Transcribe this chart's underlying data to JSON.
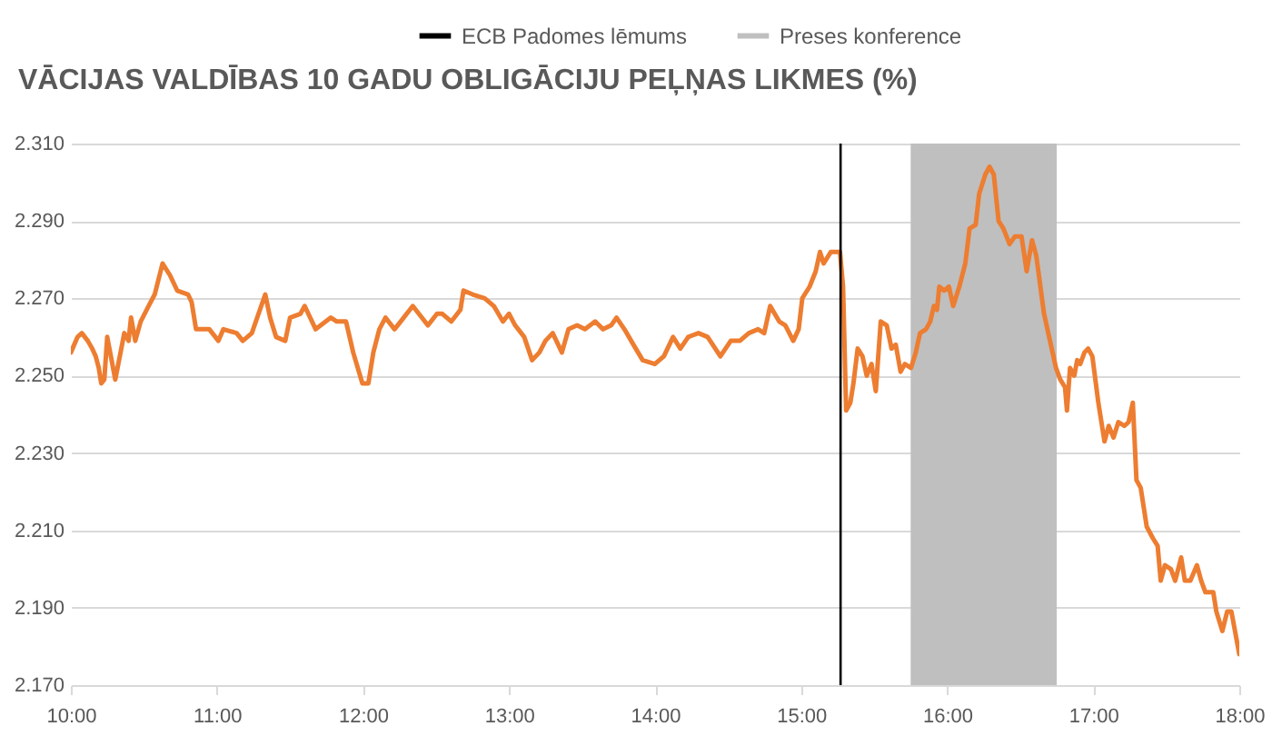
{
  "chart_data": {
    "type": "line",
    "title": "VĀCIJAS VALDĪBAS 10 GADU OBLIGĀCIJU PEĻŅAS LIKMES (%)",
    "x": [
      10.0,
      10.046,
      10.075,
      10.116,
      10.146,
      10.17,
      10.191,
      10.208,
      10.229,
      10.249,
      10.304,
      10.366,
      10.395,
      10.412,
      10.441,
      10.478,
      10.532,
      10.574,
      10.628,
      10.678,
      10.728,
      10.802,
      10.827,
      10.857,
      10.948,
      11.01,
      11.044,
      11.135,
      11.177,
      11.239,
      11.331,
      11.364,
      11.405,
      11.468,
      11.501,
      11.572,
      11.601,
      11.676,
      11.78,
      11.821,
      11.884,
      11.933,
      11.996,
      12.037,
      12.071,
      12.112,
      12.154,
      12.216,
      12.258,
      12.341,
      12.403,
      12.445,
      12.507,
      12.543,
      12.605,
      12.667,
      12.688,
      12.751,
      12.834,
      12.896,
      12.958,
      13.0,
      13.042,
      13.104,
      13.158,
      13.208,
      13.249,
      13.299,
      13.362,
      13.407,
      13.466,
      13.52,
      13.59,
      13.644,
      13.699,
      13.736,
      13.79,
      13.852,
      13.915,
      13.998,
      14.06,
      14.123,
      14.173,
      14.227,
      14.297,
      14.36,
      14.447,
      14.518,
      14.58,
      14.642,
      14.705,
      14.747,
      14.788,
      14.85,
      14.892,
      14.946,
      14.983,
      15.008,
      15.058,
      15.1,
      15.129,
      15.154,
      15.204,
      15.266,
      15.287,
      15.308,
      15.337,
      15.358,
      15.387,
      15.42,
      15.449,
      15.482,
      15.511,
      15.545,
      15.586,
      15.619,
      15.648,
      15.681,
      15.71,
      15.752,
      15.785,
      15.814,
      15.855,
      15.884,
      15.909,
      15.93,
      15.946,
      15.979,
      16.012,
      16.041,
      16.083,
      16.124,
      16.153,
      16.195,
      16.219,
      16.261,
      16.29,
      16.319,
      16.352,
      16.385,
      16.427,
      16.464,
      16.509,
      16.544,
      16.581,
      16.61,
      16.663,
      16.704,
      16.745,
      16.774,
      16.807,
      16.82,
      16.841,
      16.87,
      16.89,
      16.911,
      16.94,
      16.965,
      16.994,
      17.035,
      17.077,
      17.106,
      17.139,
      17.172,
      17.213,
      17.242,
      17.271,
      17.296,
      17.325,
      17.366,
      17.408,
      17.441,
      17.462,
      17.491,
      17.532,
      17.561,
      17.602,
      17.627,
      17.665,
      17.71,
      17.739,
      17.768,
      17.822,
      17.843,
      17.884,
      17.917,
      17.946,
      18.0
    ],
    "series": [
      {
        "color": "#ed7d31",
        "line_style": "solid",
        "values": [
          2.256,
          2.26,
          2.261,
          2.259,
          2.257,
          2.255,
          2.252,
          2.248,
          2.249,
          2.26,
          2.249,
          2.261,
          2.259,
          2.265,
          2.259,
          2.264,
          2.268,
          2.271,
          2.279,
          2.276,
          2.272,
          2.271,
          2.269,
          2.262,
          2.262,
          2.259,
          2.262,
          2.261,
          2.259,
          2.261,
          2.271,
          2.265,
          2.26,
          2.259,
          2.265,
          2.266,
          2.268,
          2.262,
          2.265,
          2.264,
          2.264,
          2.256,
          2.248,
          2.248,
          2.256,
          2.262,
          2.265,
          2.262,
          2.264,
          2.268,
          2.265,
          2.263,
          2.266,
          2.266,
          2.264,
          2.267,
          2.272,
          2.271,
          2.27,
          2.268,
          2.264,
          2.266,
          2.263,
          2.26,
          2.254,
          2.256,
          2.259,
          2.261,
          2.256,
          2.262,
          2.263,
          2.262,
          2.264,
          2.262,
          2.263,
          2.265,
          2.262,
          2.258,
          2.254,
          2.253,
          2.255,
          2.26,
          2.257,
          2.26,
          2.261,
          2.26,
          2.255,
          2.259,
          2.259,
          2.261,
          2.262,
          2.261,
          2.268,
          2.264,
          2.263,
          2.259,
          2.262,
          2.27,
          2.273,
          2.277,
          2.282,
          2.279,
          2.282,
          2.282,
          2.273,
          2.241,
          2.243,
          2.248,
          2.257,
          2.255,
          2.25,
          2.253,
          2.246,
          2.264,
          2.263,
          2.257,
          2.258,
          2.251,
          2.253,
          2.252,
          2.256,
          2.261,
          2.262,
          2.264,
          2.268,
          2.267,
          2.273,
          2.272,
          2.273,
          2.268,
          2.273,
          2.279,
          2.288,
          2.289,
          2.297,
          2.302,
          2.304,
          2.302,
          2.29,
          2.288,
          2.284,
          2.286,
          2.286,
          2.277,
          2.285,
          2.281,
          2.266,
          2.259,
          2.252,
          2.249,
          2.247,
          2.241,
          2.252,
          2.25,
          2.254,
          2.253,
          2.256,
          2.257,
          2.255,
          2.243,
          2.233,
          2.237,
          2.234,
          2.238,
          2.237,
          2.238,
          2.243,
          2.223,
          2.221,
          2.211,
          2.208,
          2.206,
          2.197,
          2.201,
          2.2,
          2.197,
          2.203,
          2.197,
          2.197,
          2.201,
          2.197,
          2.194,
          2.194,
          2.189,
          2.184,
          2.189,
          2.189,
          2.178
        ]
      }
    ],
    "xlim": [
      10,
      18
    ],
    "xticks": [
      {
        "value": 10,
        "label": "10:00"
      },
      {
        "value": 11,
        "label": "11:00"
      },
      {
        "value": 12,
        "label": "12:00"
      },
      {
        "value": 13,
        "label": "13:00"
      },
      {
        "value": 14,
        "label": "14:00"
      },
      {
        "value": 15,
        "label": "15:00"
      },
      {
        "value": 16,
        "label": "16:00"
      },
      {
        "value": 17,
        "label": "17:00"
      },
      {
        "value": 18,
        "label": "18:00"
      }
    ],
    "ylim": [
      2.17,
      2.31
    ],
    "yticks": [
      {
        "value": 2.17,
        "label": "2.170"
      },
      {
        "value": 2.19,
        "label": "2.190"
      },
      {
        "value": 2.21,
        "label": "2.210"
      },
      {
        "value": 2.23,
        "label": "2.230"
      },
      {
        "value": 2.25,
        "label": "2.250"
      },
      {
        "value": 2.27,
        "label": "2.270"
      },
      {
        "value": 2.29,
        "label": "2.290"
      },
      {
        "value": 2.31,
        "label": "2.310"
      }
    ],
    "grid": "y",
    "legend": "top",
    "ref_lines": [
      {
        "axis": "x",
        "value": 15.27,
        "label": "ECB Padomes lēmums",
        "color": "#000000"
      }
    ],
    "bands": [
      {
        "axis": "x",
        "from": 15.75,
        "to": 16.75,
        "label": "Preses konference",
        "color": "#bfbfbf"
      }
    ]
  }
}
